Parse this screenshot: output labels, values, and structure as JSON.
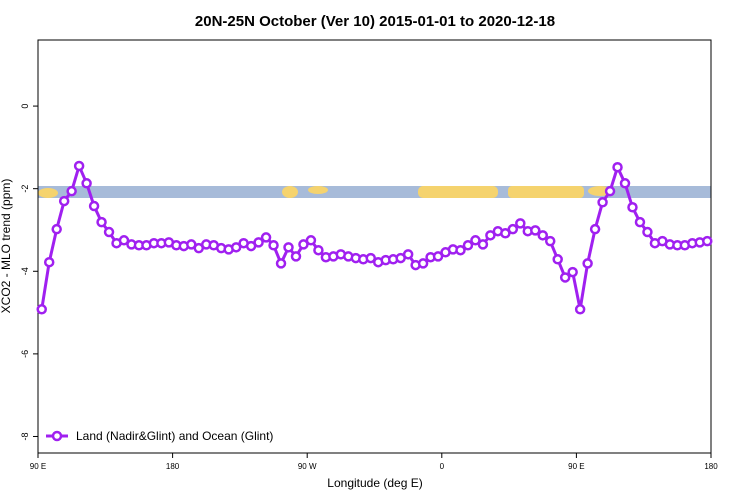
{
  "chart_data": {
    "type": "line",
    "title": "20N-25N October (Ver 10)   2015-01-01 to 2020-12-18",
    "x_label": "Longitude (deg E)",
    "y_label": "XCO2 - MLO trend (ppm)",
    "x": [
      92.5,
      97.5,
      102.5,
      107.5,
      112.5,
      117.5,
      122.5,
      127.5,
      132.5,
      137.5,
      142.5,
      147.5,
      152.5,
      157.5,
      162.5,
      167.5,
      172.5,
      177.5,
      182.5,
      187.5,
      192.5,
      197.5,
      202.5,
      207.5,
      212.5,
      217.5,
      222.5,
      227.5,
      232.5,
      237.5,
      242.5,
      247.5,
      252.5,
      257.5,
      262.5,
      267.5,
      272.5,
      277.5,
      282.5,
      287.5,
      292.5,
      297.5,
      302.5,
      307.5,
      312.5,
      317.5,
      322.5,
      327.5,
      332.5,
      337.5,
      342.5,
      347.5,
      352.5,
      357.5,
      362.5,
      367.5,
      372.5,
      377.5,
      382.5,
      387.5,
      392.5,
      397.5,
      402.5,
      407.5,
      412.5,
      417.5,
      422.5,
      427.5,
      432.5,
      437.5,
      442.5,
      447.5,
      452.5,
      457.5,
      462.5,
      467.5,
      472.5,
      477.5,
      482.5,
      487.5,
      492.5,
      497.5,
      502.5,
      507.5,
      512.5,
      517.5,
      522.5,
      527.5,
      532.5,
      537.5
    ],
    "series": [
      {
        "name": "Land (Nadir&Glint) and Ocean (Glint)",
        "color": "#a020f0",
        "values": [
          -4.92,
          -3.78,
          -2.98,
          -2.3,
          -2.06,
          -1.45,
          -1.87,
          -2.42,
          -2.81,
          -3.05,
          -3.32,
          -3.25,
          -3.35,
          -3.37,
          -3.37,
          -3.32,
          -3.32,
          -3.3,
          -3.37,
          -3.39,
          -3.35,
          -3.44,
          -3.35,
          -3.37,
          -3.44,
          -3.47,
          -3.42,
          -3.32,
          -3.39,
          -3.3,
          -3.18,
          -3.37,
          -3.81,
          -3.42,
          -3.64,
          -3.35,
          -3.25,
          -3.49,
          -3.66,
          -3.64,
          -3.59,
          -3.64,
          -3.68,
          -3.71,
          -3.68,
          -3.78,
          -3.73,
          -3.71,
          -3.68,
          -3.59,
          -3.85,
          -3.81,
          -3.66,
          -3.64,
          -3.54,
          -3.47,
          -3.49,
          -3.37,
          -3.25,
          -3.35,
          -3.13,
          -3.03,
          -3.08,
          -2.98,
          -2.84,
          -3.03,
          -3.01,
          -3.13,
          -3.27,
          -3.71,
          -4.15,
          -4.02,
          -4.92,
          -3.81,
          -2.98,
          -2.33,
          -2.06,
          -1.48,
          -1.87,
          -2.45,
          -2.81,
          -3.05,
          -3.32,
          -3.27,
          -3.35,
          -3.37,
          -3.37,
          -3.32,
          -3.3,
          -3.27
        ]
      }
    ],
    "xlim": [
      90,
      540
    ],
    "xticks": [
      {
        "value": 90,
        "label": "90 E"
      },
      {
        "value": 180,
        "label": "180"
      },
      {
        "value": 270,
        "label": "90 W"
      },
      {
        "value": 360,
        "label": "0"
      },
      {
        "value": 450,
        "label": "90 E"
      },
      {
        "value": 540,
        "label": "180"
      }
    ],
    "ylim": [
      -8.4,
      1.6
    ],
    "yticks": [
      0,
      -2,
      -4,
      -6,
      -8
    ],
    "legend": "bottom-left"
  }
}
